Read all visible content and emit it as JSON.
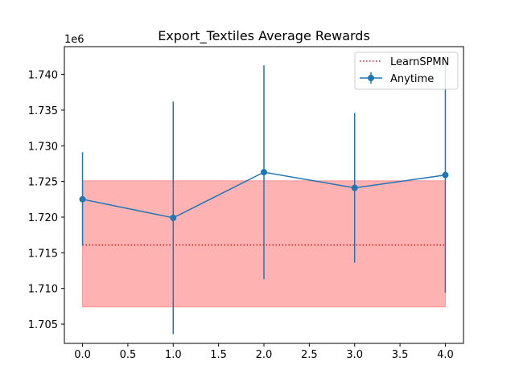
{
  "chart_data": {
    "type": "line",
    "title": "Export_Textiles Average Rewards",
    "xlabel": "",
    "ylabel": "",
    "y_offset_label": "1e6",
    "xlim": [
      -0.2,
      4.2
    ],
    "ylim": [
      1.7023,
      1.7439
    ],
    "x_ticks": [
      0.0,
      0.5,
      1.0,
      1.5,
      2.0,
      2.5,
      3.0,
      3.5,
      4.0
    ],
    "x_tick_labels": [
      "0.0",
      "0.5",
      "1.0",
      "1.5",
      "2.0",
      "2.5",
      "3.0",
      "3.5",
      "4.0"
    ],
    "y_ticks": [
      1.705,
      1.71,
      1.715,
      1.72,
      1.725,
      1.73,
      1.735,
      1.74
    ],
    "y_tick_labels": [
      "1.705",
      "1.710",
      "1.715",
      "1.720",
      "1.725",
      "1.730",
      "1.735",
      "1.740"
    ],
    "grid": false,
    "legend_position": "top-right",
    "series": [
      {
        "name": "Anytime",
        "kind": "errorbar",
        "color": "#1f77b4",
        "x": [
          0,
          1,
          2,
          3,
          4
        ],
        "y": [
          1.7225,
          1.7199,
          1.7263,
          1.7241,
          1.7259
        ],
        "y_low": [
          1.716,
          1.7036,
          1.7113,
          1.7136,
          1.7094
        ],
        "y_high": [
          1.7291,
          1.7362,
          1.7413,
          1.7346,
          1.7425
        ]
      },
      {
        "name": "LearnSPMN",
        "kind": "hline-band",
        "color": "#ff0000",
        "band_color": "#ff0000",
        "x": [
          0,
          4
        ],
        "y": 1.7161,
        "band_low": 1.7074,
        "band_high": 1.7251
      }
    ]
  }
}
